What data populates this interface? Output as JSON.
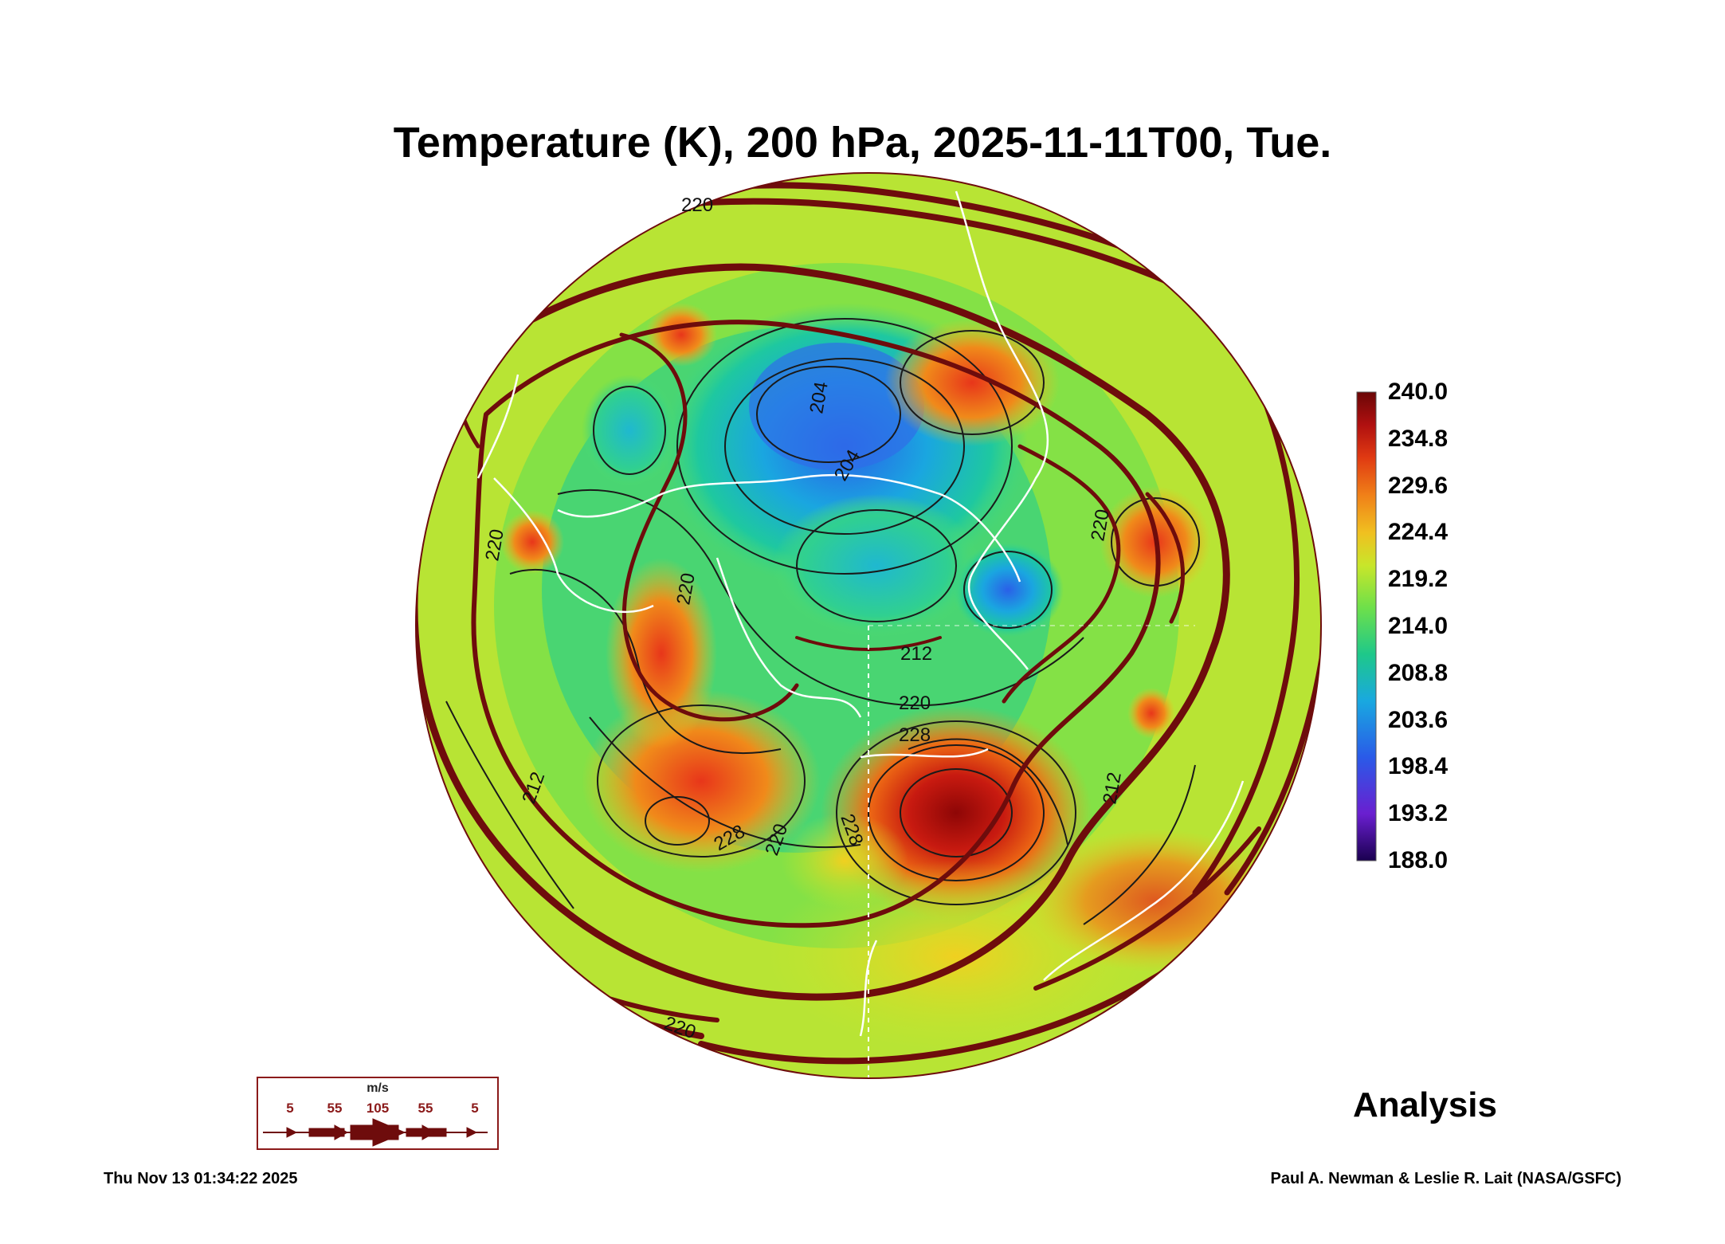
{
  "title": "Temperature (K), 200 hPa, 2025-11-11T00, Tue.",
  "colorbar": {
    "labels": [
      "240.0",
      "234.8",
      "229.6",
      "224.4",
      "219.2",
      "214.0",
      "208.8",
      "203.6",
      "198.4",
      "193.2",
      "188.0"
    ],
    "range": [
      188.0,
      240.0
    ]
  },
  "contour_labels": [
    "204",
    "204",
    "212",
    "212",
    "212",
    "220",
    "220",
    "220",
    "220",
    "220",
    "220",
    "228",
    "228",
    "228",
    "220"
  ],
  "wind_legend": {
    "unit": "m/s",
    "labels": [
      "5",
      "55",
      "105",
      "55",
      "5"
    ]
  },
  "analysis_label": "Analysis",
  "footer": {
    "timestamp": "Thu Nov 13 01:34:22 2025",
    "credit": "Paul A. Newman & Leslie R. Lait (NASA/GSFC)"
  },
  "colors": {
    "streamline": "#6e0c0c",
    "coast": "#ffffff",
    "contour": "#1a1a1a"
  }
}
